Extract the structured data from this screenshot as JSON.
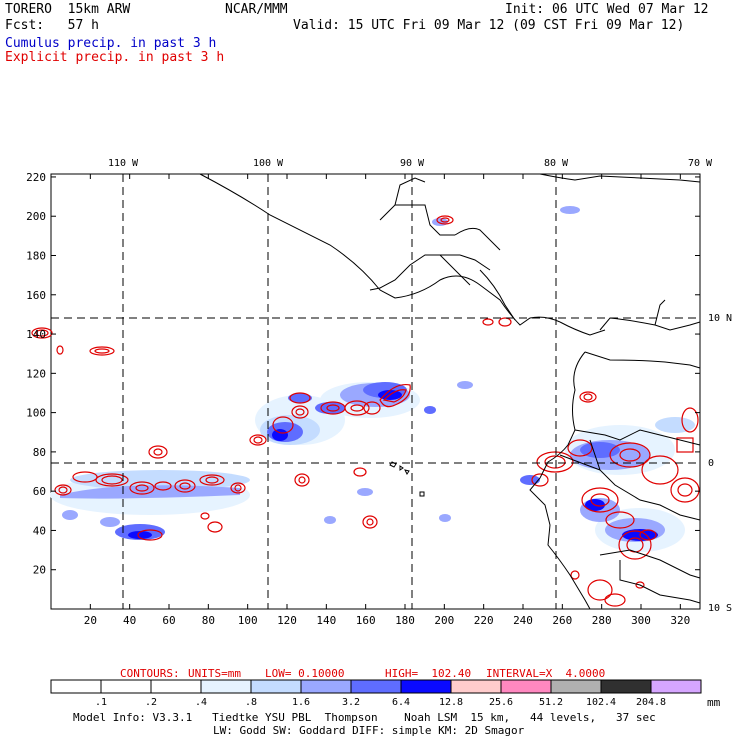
{
  "header": {
    "model": "TORERO  15km ARW",
    "org": "NCAR/MMM",
    "init": "Init: 06 UTC Wed 07 Mar 12",
    "fcst": "Fcst:   57 h",
    "valid": "Valid: 15 UTC Fri 09 Mar 12 (09 CST Fri 09 Mar 12)",
    "field1": "Cumulus precip. in past 3 h",
    "field2": "Explicit precip. in past 3 h"
  },
  "map": {
    "top_lon_labels": [
      "110 W",
      "100 W",
      "90 W",
      "80 W",
      "70 W"
    ],
    "right_lat_labels": [
      "10 N",
      "0",
      "10 S"
    ],
    "y_ticks": [
      "220",
      "200",
      "180",
      "160",
      "140",
      "120",
      "100",
      "80",
      "60",
      "40",
      "20"
    ],
    "x_ticks": [
      "20",
      "40",
      "60",
      "80",
      "100",
      "120",
      "140",
      "160",
      "180",
      "200",
      "220",
      "240",
      "260",
      "280",
      "300",
      "320"
    ]
  },
  "contours": {
    "label": "CONTOURS:",
    "units": "UNITS=mm",
    "low": "LOW= 0.10000",
    "high": "HIGH=  102.40",
    "interval": "INTERVAL=X  4.0000"
  },
  "colorbar": {
    "labels": [
      ".1",
      ".2",
      ".4",
      ".8",
      "1.6",
      "3.2",
      "6.4",
      "12.8",
      "25.6",
      "51.2",
      "102.4",
      "204.8"
    ],
    "colors": [
      "#ffffff",
      "#ffffff",
      "#ffffff",
      "#e6f3ff",
      "#c4dcff",
      "#9aa8ff",
      "#5f6dff",
      "#0a0aff",
      "#ffcccc",
      "#ff88c0",
      "#b0b0b0",
      "#303030",
      "#d6a6ff"
    ],
    "unit": "mm"
  },
  "footer": {
    "line1": "Model Info: V3.3.1   Tiedtke YSU PBL  Thompson    Noah LSM  15 km,   44 levels,   37 sec",
    "line2": "LW: Godd SW: Goddard DIFF: simple KM: 2D Smagor"
  }
}
